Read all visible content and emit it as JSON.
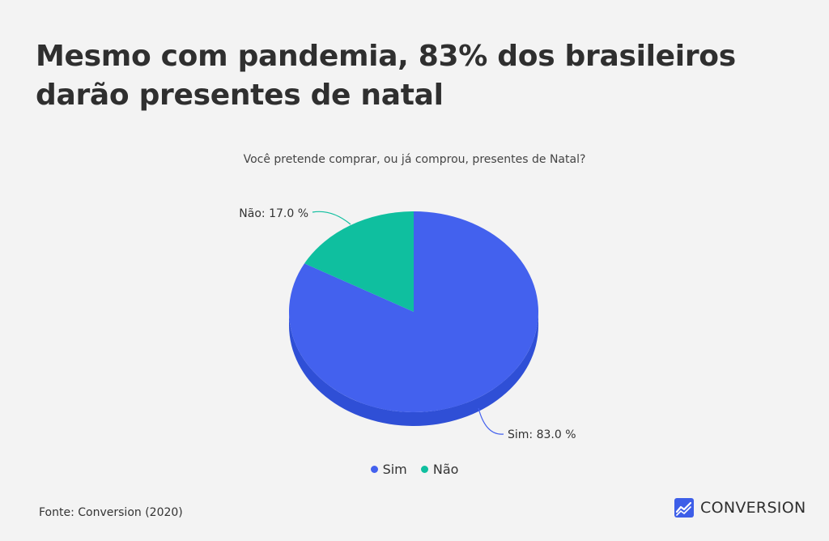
{
  "headline": "Mesmo com pandemia, 83% dos brasileiros darão presentes de natal",
  "source": "Fonte: Conversion (2020)",
  "brand": {
    "name": "CONVERSION",
    "icon": "trend-chart-icon",
    "color": "#3d5ee8"
  },
  "chart_data": {
    "type": "pie",
    "title": "Você pretende comprar, ou já comprou, presentes de Natal?",
    "slices": [
      {
        "label": "Sim",
        "value": 83.0,
        "display": "Sim: 83.0 %",
        "color": "#4361ee",
        "side_color": "#2f4fd6"
      },
      {
        "label": "Não",
        "value": 17.0,
        "display": "Não: 17.0 %",
        "color": "#0fbf9f",
        "side_color": "#0b9e83"
      }
    ],
    "legend": [
      "Sim",
      "Não"
    ],
    "legend_position": "bottom-center",
    "style": "3d"
  }
}
